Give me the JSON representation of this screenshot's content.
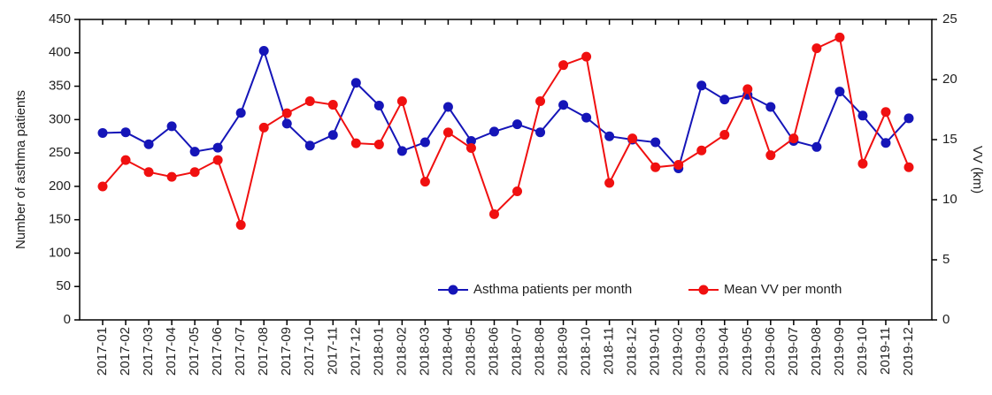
{
  "chart_data": {
    "type": "line",
    "y_label": "Number of asthma patients",
    "y2_label": "VV (km)",
    "categories": [
      "2017-01",
      "2017-02",
      "2017-03",
      "2017-04",
      "2017-05",
      "2017-06",
      "2017-07",
      "2017-08",
      "2017-09",
      "2017-10",
      "2017-11",
      "2017-12",
      "2018-01",
      "2018-02",
      "2018-03",
      "2018-04",
      "2018-05",
      "2018-06",
      "2018-07",
      "2018-08",
      "2018-09",
      "2018-10",
      "2018-11",
      "2018-12",
      "2019-01",
      "2019-02",
      "2019-03",
      "2019-04",
      "2019-05",
      "2019-06",
      "2019-07",
      "2019-08",
      "2019-09",
      "2019-10",
      "2019-11",
      "2019-12"
    ],
    "series": [
      {
        "name": "Asthma patients per month",
        "color": "#1515b8",
        "axis": "y",
        "values": [
          280,
          281,
          263,
          290,
          252,
          258,
          310,
          403,
          294,
          261,
          277,
          355,
          321,
          253,
          266,
          319,
          268,
          282,
          293,
          281,
          322,
          303,
          275,
          270,
          266,
          227,
          351,
          330,
          337,
          319,
          268,
          259,
          342,
          306,
          265,
          302
        ]
      },
      {
        "name": "Mean VV per month",
        "color": "#f01010",
        "axis": "y2",
        "values": [
          11.1,
          13.3,
          12.3,
          11.9,
          12.3,
          13.3,
          7.9,
          16.0,
          17.2,
          18.2,
          17.9,
          14.7,
          14.6,
          18.2,
          11.5,
          15.6,
          14.3,
          8.8,
          10.7,
          18.2,
          21.2,
          21.9,
          11.4,
          15.1,
          12.7,
          12.9,
          14.1,
          15.4,
          19.2,
          13.7,
          15.1,
          22.6,
          23.5,
          13.0,
          17.3,
          12.7
        ]
      }
    ],
    "ylim": [
      0,
      450
    ],
    "yticks": [
      0,
      50,
      100,
      150,
      200,
      250,
      300,
      350,
      400,
      450
    ],
    "y2lim": [
      0,
      25
    ],
    "y2ticks": [
      0,
      5,
      10,
      15,
      20,
      25
    ],
    "legend": "lower right"
  }
}
